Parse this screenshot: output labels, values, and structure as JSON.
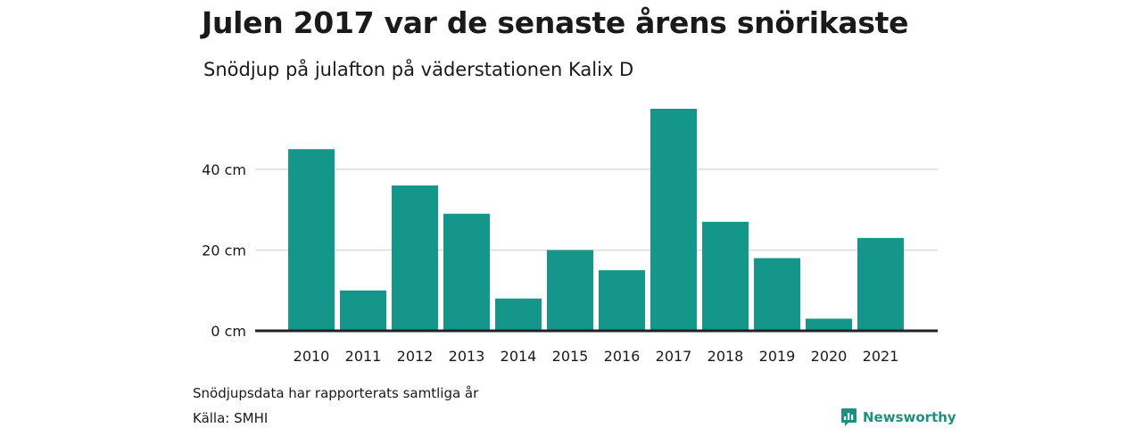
{
  "title": "Julen 2017 var de senaste årens snörikaste",
  "subtitle": "Snödjup på julafton på väderstationen Kalix D",
  "note": "Snödjupsdata har rapporterats samtliga år",
  "source": "Källa: SMHI",
  "brand": "Newsworthy",
  "colors": {
    "bar": "#14968a",
    "grid": "#d9d9d9",
    "axis": "#222222",
    "brand": "#1f8f80"
  },
  "chart_data": {
    "type": "bar",
    "categories": [
      "2010",
      "2011",
      "2012",
      "2013",
      "2014",
      "2015",
      "2016",
      "2017",
      "2018",
      "2019",
      "2020",
      "2021"
    ],
    "values": [
      45,
      10,
      36,
      29,
      8,
      20,
      15,
      55,
      27,
      18,
      3,
      23
    ],
    "ylim": [
      0,
      55
    ],
    "yticks": [
      0,
      20,
      40
    ],
    "ytick_labels": [
      "0 cm",
      "20 cm",
      "40 cm"
    ],
    "grid": true
  }
}
